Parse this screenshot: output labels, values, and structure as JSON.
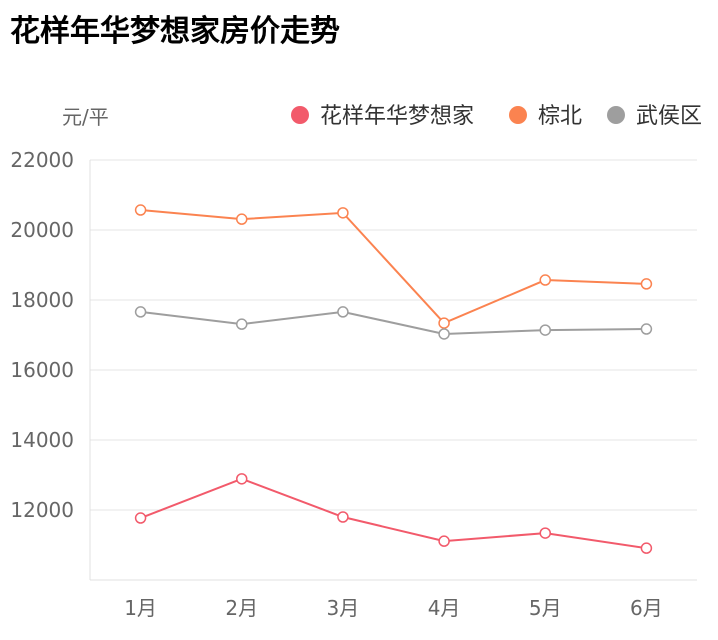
{
  "title": "花样年华梦想家房价走势",
  "chart_data": {
    "type": "line",
    "title": "花样年华梦想家房价走势",
    "ylabel": "元/平",
    "xlabel": "",
    "categories": [
      "1月",
      "2月",
      "3月",
      "4月",
      "5月",
      "6月"
    ],
    "ylim": [
      10000,
      22000
    ],
    "yticks": [
      12000,
      14000,
      16000,
      18000,
      20000,
      22000
    ],
    "grid": true,
    "legend": "top-right",
    "series": [
      {
        "name": "花样年华梦想家",
        "color": "#f25a6b",
        "values": [
          11770,
          12890,
          11800,
          11110,
          11340,
          10910
        ]
      },
      {
        "name": "棕北",
        "color": "#fb8350",
        "values": [
          20570,
          20310,
          20490,
          17340,
          18570,
          18460
        ]
      },
      {
        "name": "武侯区",
        "color": "#9e9e9e",
        "values": [
          17660,
          17310,
          17660,
          17030,
          17140,
          17170
        ]
      }
    ]
  }
}
